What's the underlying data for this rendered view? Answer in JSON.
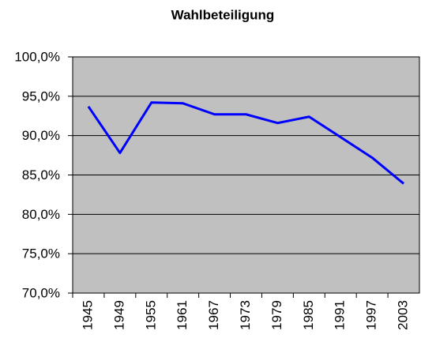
{
  "chart_data": {
    "type": "line",
    "title": "Wahlbeteiligung",
    "categories": [
      "1945",
      "1949",
      "1955",
      "1961",
      "1967",
      "1973",
      "1979",
      "1985",
      "1991",
      "1997",
      "2003"
    ],
    "series": [
      {
        "name": "Wahlbeteiligung",
        "color": "#0000ff",
        "values": [
          93.7,
          87.8,
          94.2,
          94.1,
          92.7,
          92.7,
          91.6,
          92.4,
          89.8,
          87.2,
          83.9
        ]
      }
    ],
    "ylim": [
      70,
      100
    ],
    "yticks": [
      {
        "value": 70,
        "label": "70,0%"
      },
      {
        "value": 75,
        "label": "75,0%"
      },
      {
        "value": 80,
        "label": "80,0%"
      },
      {
        "value": 85,
        "label": "85,0%"
      },
      {
        "value": 90,
        "label": "90,0%"
      },
      {
        "value": 95,
        "label": "95,0%"
      },
      {
        "value": 100,
        "label": "100,0%"
      }
    ],
    "grid": true,
    "plot_background": "#c0c0c0"
  }
}
